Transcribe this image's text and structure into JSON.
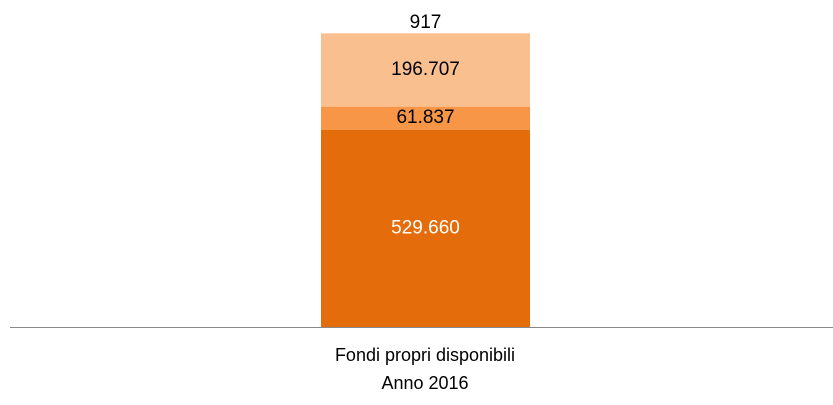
{
  "chart_data": {
    "type": "stacked_bar",
    "categories": [
      "Fondi propri disponibili\nAnno 2016"
    ],
    "series": [
      {
        "color": "#e46c0a",
        "values": [
          529660
        ],
        "value_labels": [
          "529.660"
        ]
      },
      {
        "color": "#f79646",
        "values": [
          61837
        ],
        "value_labels": [
          "61.837"
        ]
      },
      {
        "color": "#fabf8f",
        "values": [
          196707
        ],
        "value_labels": [
          "196.707"
        ]
      },
      {
        "color": "#fde9d9",
        "values": [
          917
        ],
        "value_labels": [
          "917"
        ]
      }
    ]
  }
}
